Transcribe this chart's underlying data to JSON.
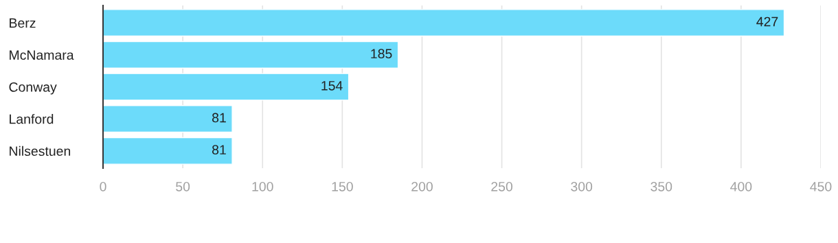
{
  "chart_data": {
    "type": "bar",
    "orientation": "horizontal",
    "categories": [
      "Berz",
      "McNamara",
      "Conway",
      "Lanford",
      "Nilsestuen"
    ],
    "values": [
      427,
      185,
      154,
      81,
      81
    ],
    "color": "#6cdbfa",
    "xlim": [
      0,
      450
    ],
    "xticks": [
      0,
      50,
      100,
      150,
      200,
      250,
      300,
      350,
      400,
      450
    ],
    "grid": "x",
    "data_labels": true
  }
}
